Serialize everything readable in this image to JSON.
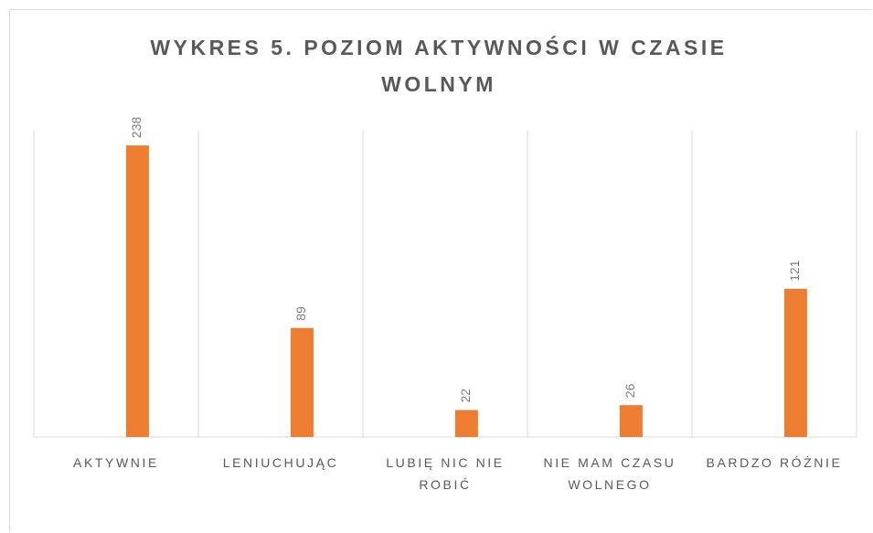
{
  "chart_data": {
    "type": "bar",
    "title": "WYKRES 5. POZIOM AKTYWNOŚCI W CZASIE WOLNYM",
    "categories": [
      "AKTYWNIE",
      "LENIUCHUJĄC",
      "LUBIĘ NIC NIE ROBIĆ",
      "NIE MAM CZASU WOLNEGO",
      "BARDZO RÓŻNIE"
    ],
    "values": [
      238,
      89,
      22,
      26,
      121
    ],
    "color": "#ed7d31",
    "ylim": [
      0,
      250
    ],
    "grid": true
  }
}
